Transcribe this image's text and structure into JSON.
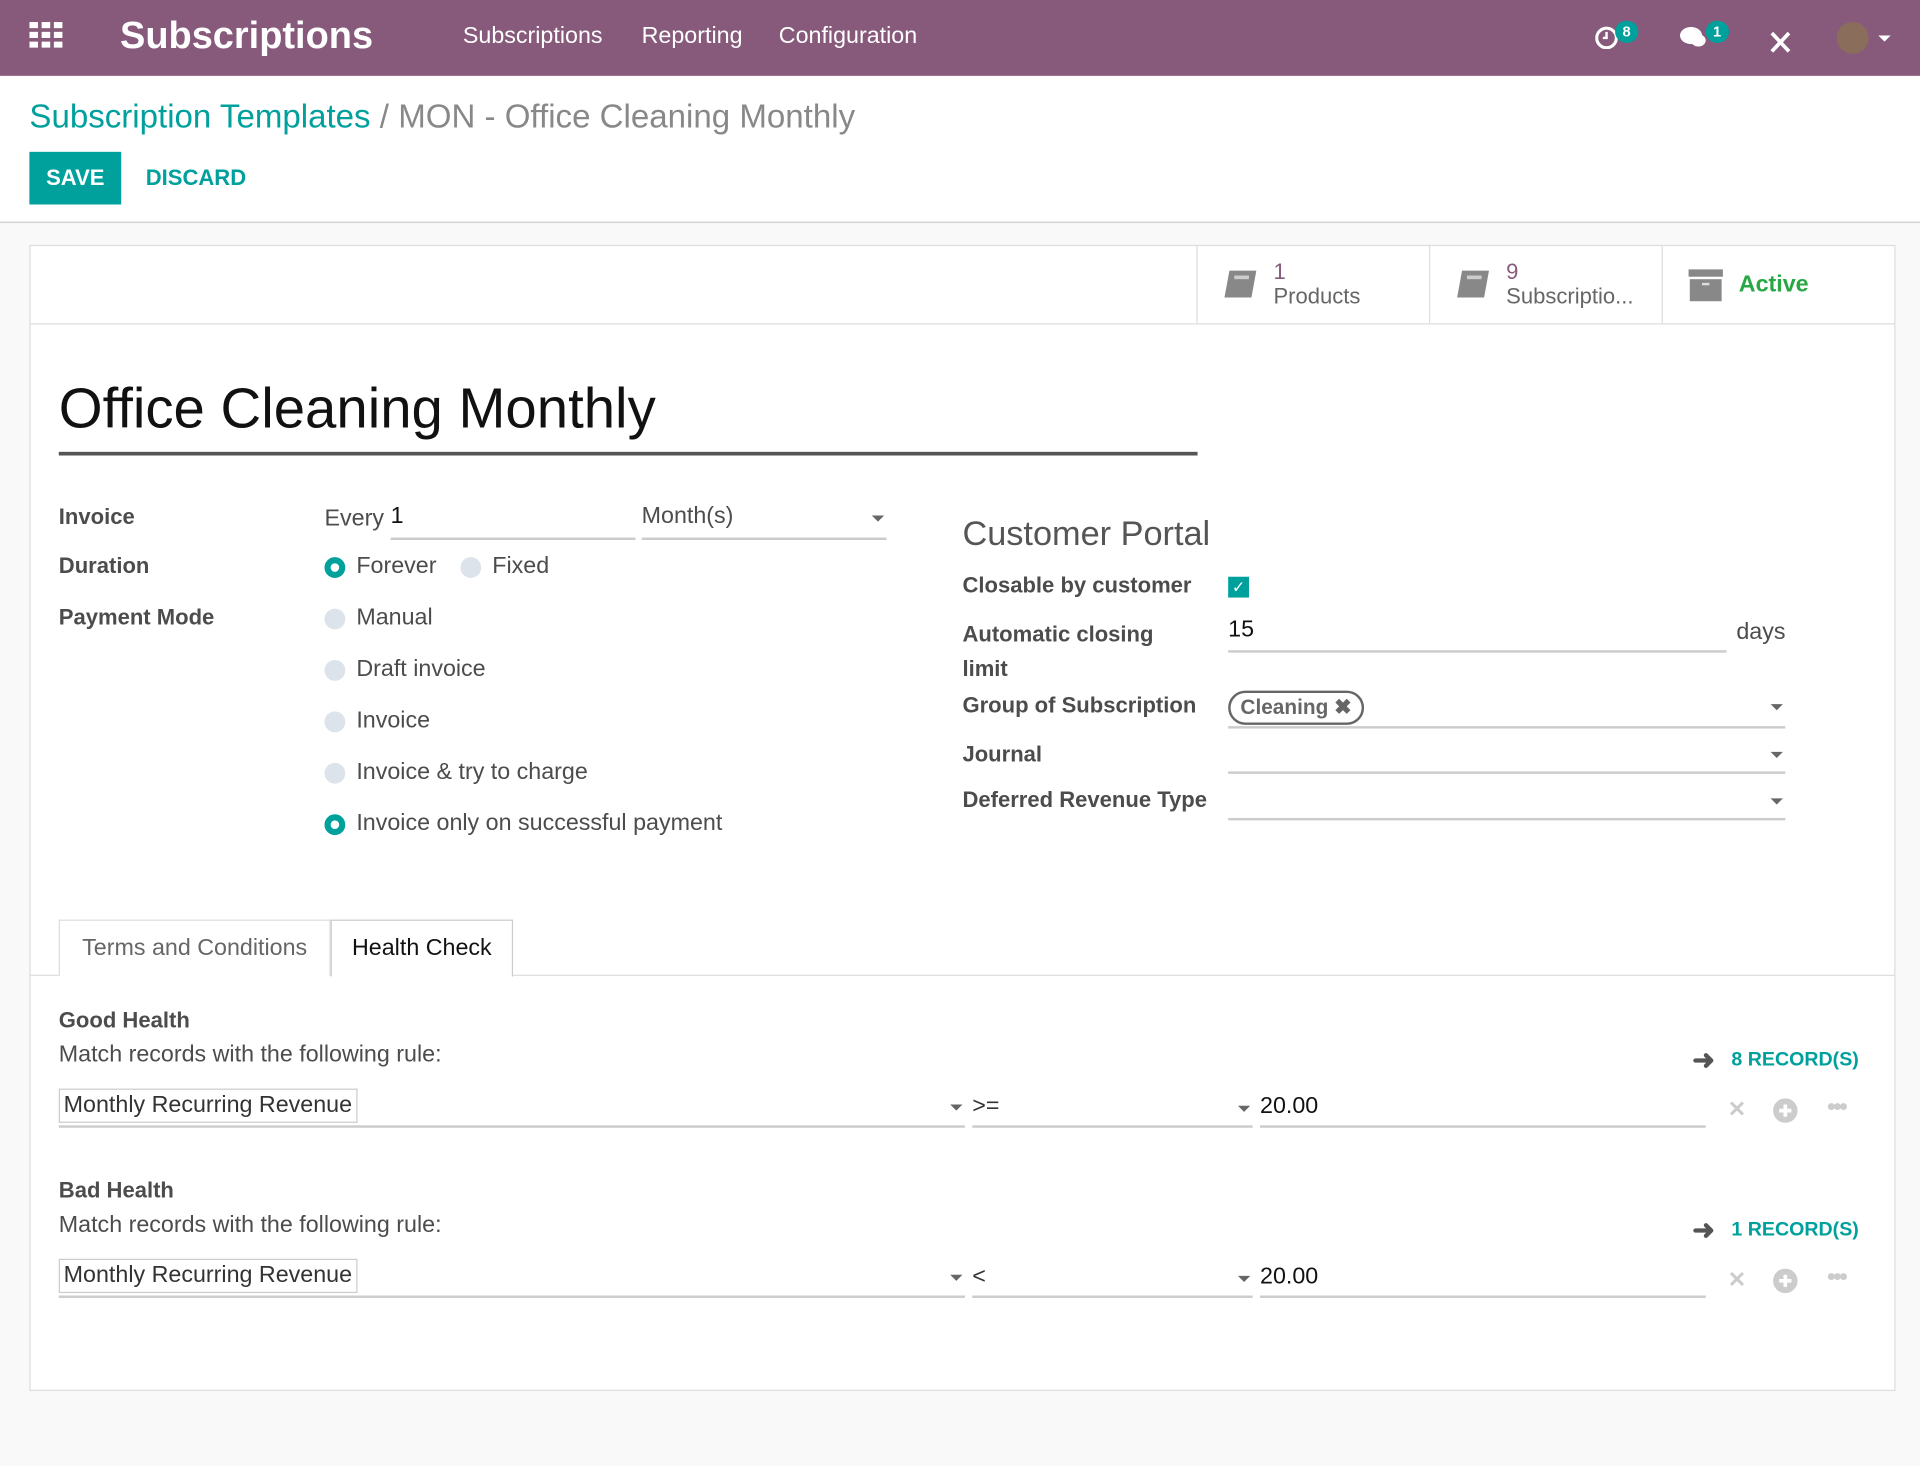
{
  "navbar": {
    "app_title": "Subscriptions",
    "menu": [
      "Subscriptions",
      "Reporting",
      "Configuration"
    ],
    "activity_count": "8",
    "message_count": "1",
    "brand_color": "#875A7B",
    "accent_color": "#00A09D"
  },
  "breadcrumb": {
    "parent": "Subscription Templates",
    "separator": "/",
    "current": "MON - Office Cleaning Monthly"
  },
  "actions": {
    "save": "SAVE",
    "discard": "DISCARD"
  },
  "button_box": [
    {
      "count": "1",
      "label": "Products",
      "icon": "book-icon"
    },
    {
      "count": "9",
      "label": "Subscriptio...",
      "icon": "book-icon"
    },
    {
      "label": "Active",
      "icon": "archive-icon"
    }
  ],
  "form": {
    "name": "Office Cleaning Monthly",
    "invoice": {
      "label": "Invoice",
      "prefix": "Every",
      "value": "1",
      "unit": "Month(s)"
    },
    "duration": {
      "label": "Duration",
      "options": [
        {
          "label": "Forever",
          "selected": true
        },
        {
          "label": "Fixed",
          "selected": false
        }
      ]
    },
    "payment_mode": {
      "label": "Payment Mode",
      "options": [
        {
          "label": "Manual",
          "selected": false
        },
        {
          "label": "Draft invoice",
          "selected": false
        },
        {
          "label": "Invoice",
          "selected": false
        },
        {
          "label": "Invoice & try to charge",
          "selected": false
        },
        {
          "label": "Invoice only on successful payment",
          "selected": true
        }
      ]
    },
    "portal": {
      "heading": "Customer Portal",
      "closable_label": "Closable by customer",
      "closable": true,
      "closing_limit_label": "Automatic closing limit",
      "closing_limit": "15",
      "closing_unit": "days",
      "group_label": "Group of Subscription",
      "group_tag": "Cleaning",
      "journal_label": "Journal",
      "journal": "",
      "deferred_label": "Deferred Revenue Type",
      "deferred": ""
    }
  },
  "tabs": [
    {
      "label": "Terms and Conditions",
      "active": false
    },
    {
      "label": "Health Check",
      "active": true
    }
  ],
  "health": [
    {
      "title": "Good Health",
      "rule_text": "Match records with the following rule:",
      "records": "8 RECORD(S)",
      "field": "Monthly Recurring Revenue",
      "operator": ">=",
      "value": "20.00"
    },
    {
      "title": "Bad Health",
      "rule_text": "Match records with the following rule:",
      "records": "1 RECORD(S)",
      "field": "Monthly Recurring Revenue",
      "operator": "<",
      "value": "20.00"
    }
  ]
}
